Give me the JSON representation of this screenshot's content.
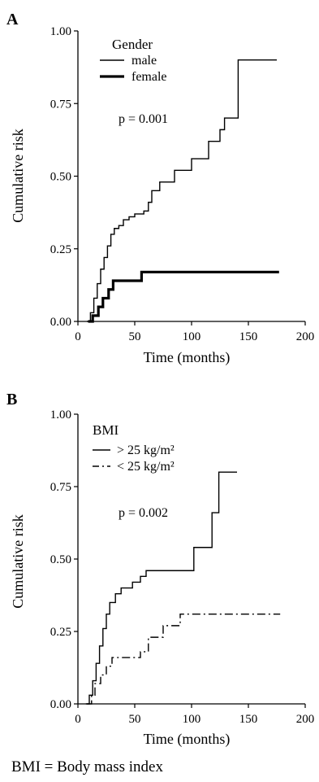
{
  "chart_data": [
    {
      "type": "line",
      "panel": "A",
      "xlabel": "Time (months)",
      "ylabel": "Cumulative risk",
      "xlim": [
        0,
        200
      ],
      "ylim": [
        0,
        1.0
      ],
      "xticks": [
        "0",
        "50",
        "100",
        "150",
        "200"
      ],
      "yticks": [
        "0.00",
        "0.25",
        "0.50",
        "0.75",
        "1.00"
      ],
      "legend": {
        "title": "Gender",
        "placement": "top-left"
      },
      "annotation": "p = 0.001",
      "series": [
        {
          "name": "male",
          "style": "thin-solid",
          "points": [
            [
              8,
              0
            ],
            [
              11,
              0.03
            ],
            [
              14,
              0.08
            ],
            [
              17,
              0.13
            ],
            [
              20,
              0.18
            ],
            [
              23,
              0.22
            ],
            [
              26,
              0.26
            ],
            [
              29,
              0.3
            ],
            [
              32,
              0.32
            ],
            [
              36,
              0.33
            ],
            [
              40,
              0.35
            ],
            [
              45,
              0.36
            ],
            [
              50,
              0.37
            ],
            [
              58,
              0.38
            ],
            [
              62,
              0.41
            ],
            [
              65,
              0.45
            ],
            [
              72,
              0.48
            ],
            [
              85,
              0.52
            ],
            [
              100,
              0.56
            ],
            [
              115,
              0.62
            ],
            [
              125,
              0.66
            ],
            [
              129,
              0.7
            ],
            [
              141,
              0.9
            ],
            [
              175,
              0.9
            ]
          ]
        },
        {
          "name": "female",
          "style": "thick-solid",
          "points": [
            [
              9,
              0
            ],
            [
              13,
              0.02
            ],
            [
              18,
              0.05
            ],
            [
              22,
              0.08
            ],
            [
              27,
              0.11
            ],
            [
              31,
              0.14
            ],
            [
              56,
              0.17
            ],
            [
              177,
              0.17
            ]
          ]
        }
      ]
    },
    {
      "type": "line",
      "panel": "B",
      "xlabel": "Time (months)",
      "ylabel": "Cumulative risk",
      "xlim": [
        0,
        200
      ],
      "ylim": [
        0,
        1.0
      ],
      "xticks": [
        "0",
        "50",
        "100",
        "150",
        "200"
      ],
      "yticks": [
        "0.00",
        "0.25",
        "0.50",
        "0.75",
        "1.00"
      ],
      "legend": {
        "title": "BMI",
        "placement": "top-left"
      },
      "annotation": "p = 0.002",
      "series": [
        {
          "name": "> 25 kg/m²",
          "style": "solid",
          "points": [
            [
              7,
              0
            ],
            [
              10,
              0.03
            ],
            [
              13,
              0.08
            ],
            [
              16,
              0.14
            ],
            [
              19,
              0.2
            ],
            [
              22,
              0.26
            ],
            [
              25,
              0.31
            ],
            [
              28,
              0.35
            ],
            [
              33,
              0.38
            ],
            [
              38,
              0.4
            ],
            [
              48,
              0.42
            ],
            [
              55,
              0.44
            ],
            [
              60,
              0.46
            ],
            [
              102,
              0.54
            ],
            [
              118,
              0.66
            ],
            [
              124,
              0.8
            ],
            [
              140,
              0.8
            ]
          ]
        },
        {
          "name": "< 25 kg/m²",
          "style": "dashed",
          "points": [
            [
              8,
              0
            ],
            [
              12,
              0.03
            ],
            [
              15,
              0.07
            ],
            [
              20,
              0.1
            ],
            [
              25,
              0.13
            ],
            [
              30,
              0.16
            ],
            [
              55,
              0.18
            ],
            [
              62,
              0.23
            ],
            [
              75,
              0.27
            ],
            [
              90,
              0.31
            ],
            [
              178,
              0.31
            ]
          ]
        }
      ]
    }
  ],
  "legend_prefix": {
    "gender": "Gender",
    "bmi": "BMI"
  },
  "footnote": "BMI = Body mass index"
}
